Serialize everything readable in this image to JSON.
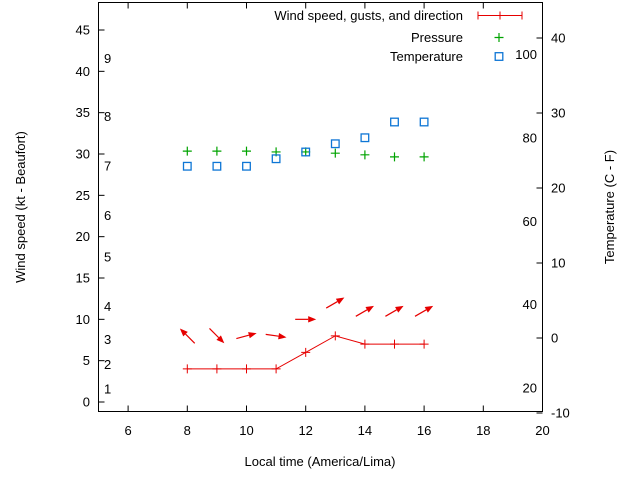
{
  "colors": {
    "wind": "#e60000",
    "pressure": "#00a300",
    "temperature": "#0e76d5",
    "axis": "#000000",
    "background": "#ffffff"
  },
  "chart_data": {
    "type": "line",
    "title": "",
    "xlabel": "Local time (America/Lima)",
    "ylabel_left": "Wind speed (kt - Beaufort)",
    "ylabel_right": "Temperature (C - F)",
    "grid": "off",
    "legend_position": "top-right-inside",
    "x_axis": {
      "range": [
        5,
        20
      ],
      "ticks": [
        6,
        8,
        10,
        12,
        14,
        16,
        18,
        20
      ]
    },
    "left_axis_kt": {
      "range": [
        -1.2,
        48.4
      ],
      "ticks": [
        0,
        5,
        10,
        15,
        20,
        25,
        30,
        35,
        40,
        45
      ]
    },
    "beaufort_scale": {
      "labels": [
        "1",
        "2",
        "3",
        "4",
        "5",
        "6",
        "7",
        "8",
        "9"
      ],
      "kt_positions": [
        1,
        4,
        7,
        11,
        17,
        22,
        28,
        34,
        41
      ]
    },
    "right_axis_c": {
      "range": [
        -9.9,
        44.8
      ],
      "ticks": [
        -10,
        0,
        10,
        20,
        30,
        40
      ]
    },
    "fahrenheit_scale": {
      "labels": [
        "20",
        "40",
        "60",
        "80",
        "100"
      ],
      "f_positions": [
        20,
        40,
        60,
        80,
        100
      ]
    },
    "legend": [
      {
        "label": "Wind speed, gusts, and direction",
        "series": "wind",
        "marker": "errorbar-plus"
      },
      {
        "label": "Pressure",
        "series": "pressure",
        "marker": "plus"
      },
      {
        "label": "Temperature",
        "series": "temperature",
        "marker": "open-square"
      }
    ],
    "hours": [
      8,
      9,
      10,
      11,
      12,
      13,
      14,
      15,
      16
    ],
    "series": [
      {
        "name": "wind-speed",
        "axis": "kt",
        "values": [
          4,
          4,
          4,
          4,
          6,
          8,
          7,
          7,
          7
        ]
      },
      {
        "name": "pressure",
        "axis": "kt",
        "values": [
          30.35,
          30.35,
          30.35,
          30.25,
          30.25,
          30.1,
          29.9,
          29.65,
          29.65
        ]
      },
      {
        "name": "temperature",
        "axis": "c",
        "values": [
          22.9,
          22.9,
          22.9,
          23.9,
          24.8,
          25.9,
          26.7,
          28.8,
          28.8
        ]
      },
      {
        "name": "wind-direction",
        "axis": "kt",
        "kt": [
          8,
          8,
          8,
          8,
          10,
          12,
          11,
          11,
          11
        ],
        "angles_deg": [
          135,
          -45,
          15,
          -8,
          0,
          30,
          30,
          30,
          30
        ]
      }
    ]
  }
}
